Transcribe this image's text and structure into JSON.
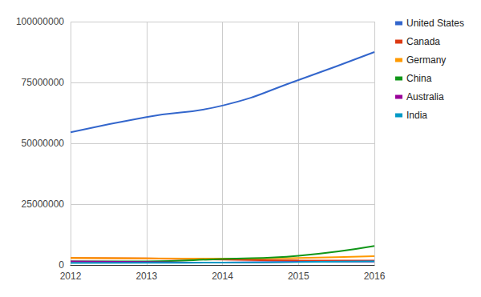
{
  "chart_data": {
    "type": "line",
    "smooth": true,
    "categories": [
      "2012",
      "2013",
      "2014",
      "2015",
      "2016"
    ],
    "series": [
      {
        "name": "United States",
        "color": "#3366cc",
        "values": [
          54500000,
          60800000,
          65500000,
          76000000,
          87500000
        ]
      },
      {
        "name": "Canada",
        "color": "#dc3912",
        "values": [
          2900000,
          2700000,
          2200000,
          1900000,
          1800000
        ]
      },
      {
        "name": "Germany",
        "color": "#ff9900",
        "values": [
          2900000,
          2700000,
          2600000,
          2900000,
          3600000
        ]
      },
      {
        "name": "China",
        "color": "#109618",
        "values": [
          1500000,
          1500000,
          2500000,
          3800000,
          7800000
        ]
      },
      {
        "name": "Australia",
        "color": "#990099",
        "values": [
          1500000,
          1200000,
          1000000,
          1300000,
          1400000
        ]
      },
      {
        "name": "India",
        "color": "#0099c6",
        "values": [
          800000,
          900000,
          1000000,
          1200000,
          1500000
        ]
      }
    ],
    "ylim": [
      0,
      100000000
    ],
    "yticks": [
      0,
      25000000,
      50000000,
      75000000,
      100000000
    ],
    "grid": true,
    "legend": "right"
  }
}
